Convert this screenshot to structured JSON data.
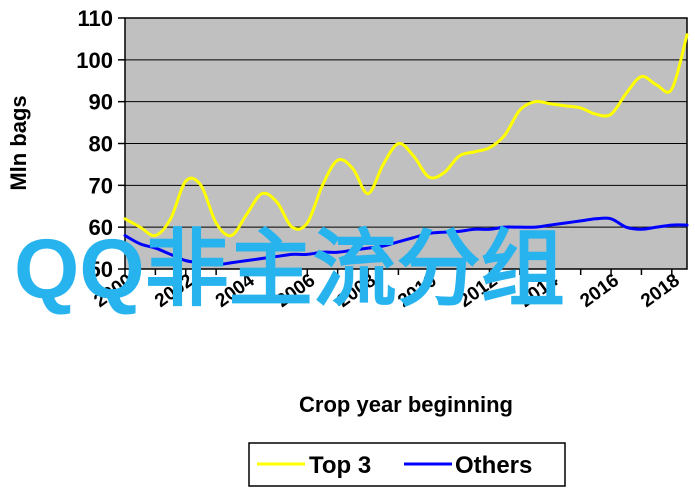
{
  "chart_data": {
    "type": "line",
    "title": "",
    "xlabel": "Crop year beginning",
    "ylabel": "Mln bags",
    "ylim": [
      50,
      110
    ],
    "xlim": [
      2000,
      2018.5
    ],
    "yticks": [
      50,
      60,
      70,
      80,
      90,
      100,
      110
    ],
    "xticks": [
      "2000",
      "2002",
      "2004",
      "2006",
      "2008",
      "2010",
      "2012",
      "2014",
      "2016",
      "2018"
    ],
    "grid": "horizontal",
    "legend_position": "bottom",
    "series": [
      {
        "name": "Top 3",
        "color": "#ffff00",
        "x": [
          2000,
          2000.5,
          2001,
          2001.5,
          2002,
          2002.5,
          2003,
          2003.5,
          2004,
          2004.5,
          2005,
          2005.5,
          2006,
          2006.5,
          2007,
          2007.5,
          2008,
          2008.5,
          2009,
          2009.5,
          2010,
          2010.5,
          2011,
          2011.5,
          2012,
          2012.5,
          2013,
          2013.5,
          2014,
          2014.5,
          2015,
          2015.5,
          2016,
          2016.5,
          2017,
          2017.5,
          2018,
          2018.5
        ],
        "y": [
          62,
          60,
          58,
          62,
          71,
          70,
          61,
          58,
          63,
          68,
          66,
          60,
          61,
          70,
          76,
          74,
          68,
          75,
          80,
          77,
          72,
          73,
          77,
          78,
          79,
          82,
          88,
          90,
          89.5,
          89,
          88.5,
          87,
          87,
          92,
          96,
          94,
          93,
          106
        ]
      },
      {
        "name": "Others",
        "color": "#0000ff",
        "x": [
          2000,
          2000.5,
          2001,
          2001.5,
          2002,
          2002.5,
          2003,
          2003.5,
          2004,
          2004.5,
          2005,
          2005.5,
          2006,
          2006.5,
          2007,
          2007.5,
          2008,
          2008.5,
          2009,
          2009.5,
          2010,
          2010.5,
          2011,
          2011.5,
          2012,
          2012.5,
          2013,
          2013.5,
          2014,
          2014.5,
          2015,
          2015.5,
          2016,
          2016.5,
          2017,
          2017.5,
          2018,
          2018.5
        ],
        "y": [
          58,
          56,
          55,
          53.5,
          52,
          51.5,
          51,
          51.5,
          52,
          52.5,
          53,
          53.5,
          53.5,
          54,
          54,
          54.5,
          55,
          55.5,
          56.5,
          57.5,
          58.5,
          58.8,
          59,
          59.5,
          59.5,
          60,
          60,
          60,
          60.5,
          61,
          61.5,
          62,
          62,
          60,
          59.5,
          60,
          60.5,
          60.5
        ]
      }
    ]
  },
  "watermark": {
    "text": "QQ非主流分组",
    "color": "#27b3ee"
  },
  "legend": {
    "items": [
      "Top 3",
      "Others"
    ]
  }
}
